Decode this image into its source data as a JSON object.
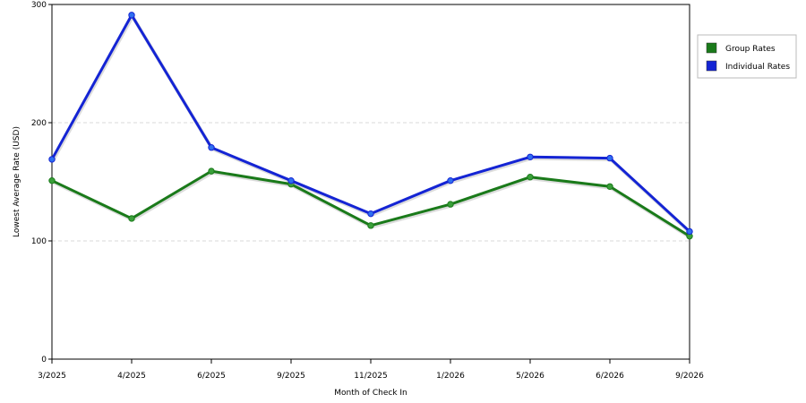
{
  "chart_data": {
    "type": "line",
    "title": "",
    "xlabel": "Month of Check In",
    "ylabel": "Lowest Average Rate (USD)",
    "categories": [
      "3/2025",
      "4/2025",
      "6/2025",
      "9/2025",
      "11/2025",
      "1/2026",
      "5/2026",
      "6/2026",
      "9/2026"
    ],
    "ylim": [
      0,
      300
    ],
    "yticks": [
      0,
      100,
      200,
      300
    ],
    "grid": "horizontal dashed",
    "legend_position": "right",
    "series": [
      {
        "name": "Group Rates",
        "color": "#1a7a1a",
        "marker_color": "#3aa03a",
        "values": [
          151,
          119,
          159,
          148,
          113,
          131,
          154,
          146,
          104
        ]
      },
      {
        "name": "Individual Rates",
        "color": "#1424d4",
        "marker_color": "#2f6ff0",
        "values": [
          169,
          291,
          179,
          151,
          123,
          151,
          171,
          170,
          108
        ]
      }
    ]
  }
}
